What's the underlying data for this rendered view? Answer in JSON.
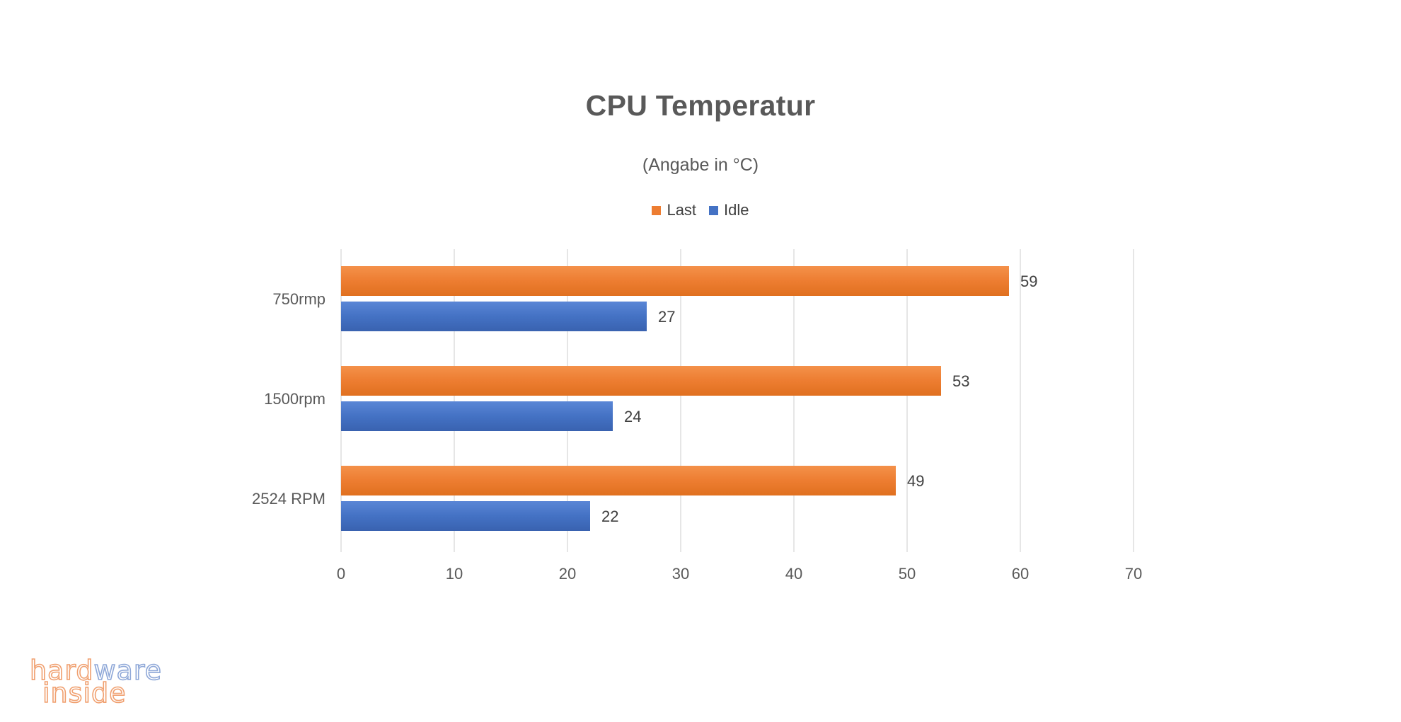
{
  "chart_data": {
    "type": "bar",
    "orientation": "horizontal",
    "title": "CPU Temperatur",
    "subtitle": "(Angabe in °C)",
    "categories": [
      "750rmp",
      "1500rpm",
      "2524 RPM"
    ],
    "series": [
      {
        "name": "Last",
        "values": [
          59,
          53,
          49
        ],
        "color": "#ED7D31"
      },
      {
        "name": "Idle",
        "values": [
          27,
          24,
          22
        ],
        "color": "#4472C4"
      }
    ],
    "xlim": [
      0,
      70
    ],
    "x_ticks": [
      "0",
      "10",
      "20",
      "30",
      "40",
      "50",
      "60",
      "70"
    ],
    "grid": true,
    "legend_position": "top",
    "data_labels": true
  },
  "watermark": {
    "line1": "hardware",
    "line2": "inside",
    "color_primary": "#F0A070",
    "color_secondary": "#8FA8D8"
  }
}
